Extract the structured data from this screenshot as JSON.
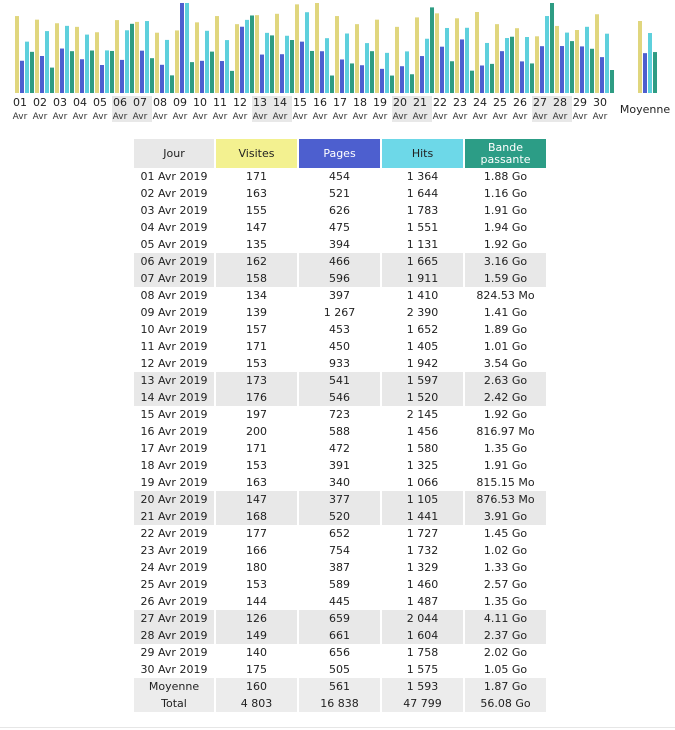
{
  "colors": {
    "visits": "#e0d67e",
    "pages": "#4d5fcf",
    "hits": "#5ed0dc",
    "bandwidth": "#2e9c83",
    "header_day_bg": "#e8e8e8",
    "header_visits_bg": "#f3f190",
    "header_pages_bg": "#4d5fcf",
    "header_hits_bg": "#6dd8e8",
    "header_bw_bg": "#2c9d86",
    "weekend_bg": "#e8e8e8"
  },
  "chart_data": {
    "type": "bar",
    "categories": [
      "01",
      "02",
      "03",
      "04",
      "05",
      "06",
      "07",
      "08",
      "09",
      "10",
      "11",
      "12",
      "13",
      "14",
      "15",
      "16",
      "17",
      "18",
      "19",
      "20",
      "21",
      "22",
      "23",
      "24",
      "25",
      "26",
      "27",
      "28",
      "29",
      "30"
    ],
    "category_sublabel": "Avr",
    "weekend_indices": [
      5,
      6,
      12,
      13,
      19,
      20,
      26,
      27
    ],
    "average_label": "Moyenne",
    "series": [
      {
        "key": "visits",
        "values": [
          171,
          163,
          155,
          147,
          135,
          162,
          158,
          134,
          139,
          157,
          171,
          153,
          173,
          176,
          197,
          200,
          171,
          153,
          163,
          147,
          168,
          177,
          166,
          180,
          153,
          144,
          126,
          149,
          140,
          175
        ],
        "average": 160
      },
      {
        "key": "pages",
        "values": [
          454,
          521,
          626,
          475,
          394,
          466,
          596,
          397,
          1267,
          453,
          450,
          933,
          541,
          546,
          723,
          588,
          472,
          391,
          340,
          377,
          520,
          652,
          754,
          387,
          589,
          445,
          659,
          661,
          656,
          505
        ],
        "average": 561
      },
      {
        "key": "hits",
        "values": [
          1364,
          1644,
          1783,
          1551,
          1131,
          1665,
          1911,
          1410,
          2390,
          1652,
          1405,
          1942,
          1597,
          1520,
          2145,
          1456,
          1580,
          1325,
          1066,
          1105,
          1441,
          1727,
          1732,
          1329,
          1460,
          1487,
          2044,
          1604,
          1758,
          1575
        ],
        "average": 1593
      },
      {
        "key": "bandwidth",
        "values": [
          1.88,
          1.16,
          1.91,
          1.94,
          1.92,
          3.16,
          1.59,
          0.805,
          1.41,
          1.89,
          1.01,
          3.54,
          2.63,
          2.42,
          1.92,
          0.798,
          1.35,
          1.91,
          0.796,
          0.856,
          3.91,
          1.45,
          1.02,
          1.33,
          2.57,
          1.35,
          4.11,
          2.37,
          2.02,
          1.05
        ],
        "average": 1.87
      }
    ],
    "ylim": [
      0,
      null
    ],
    "grid": false,
    "legend": "none"
  },
  "table": {
    "headers": {
      "day": "Jour",
      "visits": "Visites",
      "pages": "Pages",
      "hits": "Hits",
      "bandwidth": "Bande passante"
    },
    "rows": [
      {
        "day": "01 Avr 2019",
        "visits": "171",
        "pages": "454",
        "hits": "1 364",
        "bandwidth": "1.88 Go",
        "weekend": false
      },
      {
        "day": "02 Avr 2019",
        "visits": "163",
        "pages": "521",
        "hits": "1 644",
        "bandwidth": "1.16 Go",
        "weekend": false
      },
      {
        "day": "03 Avr 2019",
        "visits": "155",
        "pages": "626",
        "hits": "1 783",
        "bandwidth": "1.91 Go",
        "weekend": false
      },
      {
        "day": "04 Avr 2019",
        "visits": "147",
        "pages": "475",
        "hits": "1 551",
        "bandwidth": "1.94 Go",
        "weekend": false
      },
      {
        "day": "05 Avr 2019",
        "visits": "135",
        "pages": "394",
        "hits": "1 131",
        "bandwidth": "1.92 Go",
        "weekend": false
      },
      {
        "day": "06 Avr 2019",
        "visits": "162",
        "pages": "466",
        "hits": "1 665",
        "bandwidth": "3.16 Go",
        "weekend": true
      },
      {
        "day": "07 Avr 2019",
        "visits": "158",
        "pages": "596",
        "hits": "1 911",
        "bandwidth": "1.59 Go",
        "weekend": true
      },
      {
        "day": "08 Avr 2019",
        "visits": "134",
        "pages": "397",
        "hits": "1 410",
        "bandwidth": "824.53 Mo",
        "weekend": false
      },
      {
        "day": "09 Avr 2019",
        "visits": "139",
        "pages": "1 267",
        "hits": "2 390",
        "bandwidth": "1.41 Go",
        "weekend": false
      },
      {
        "day": "10 Avr 2019",
        "visits": "157",
        "pages": "453",
        "hits": "1 652",
        "bandwidth": "1.89 Go",
        "weekend": false
      },
      {
        "day": "11 Avr 2019",
        "visits": "171",
        "pages": "450",
        "hits": "1 405",
        "bandwidth": "1.01 Go",
        "weekend": false
      },
      {
        "day": "12 Avr 2019",
        "visits": "153",
        "pages": "933",
        "hits": "1 942",
        "bandwidth": "3.54 Go",
        "weekend": false
      },
      {
        "day": "13 Avr 2019",
        "visits": "173",
        "pages": "541",
        "hits": "1 597",
        "bandwidth": "2.63 Go",
        "weekend": true
      },
      {
        "day": "14 Avr 2019",
        "visits": "176",
        "pages": "546",
        "hits": "1 520",
        "bandwidth": "2.42 Go",
        "weekend": true
      },
      {
        "day": "15 Avr 2019",
        "visits": "197",
        "pages": "723",
        "hits": "2 145",
        "bandwidth": "1.92 Go",
        "weekend": false
      },
      {
        "day": "16 Avr 2019",
        "visits": "200",
        "pages": "588",
        "hits": "1 456",
        "bandwidth": "816.97 Mo",
        "weekend": false
      },
      {
        "day": "17 Avr 2019",
        "visits": "171",
        "pages": "472",
        "hits": "1 580",
        "bandwidth": "1.35 Go",
        "weekend": false
      },
      {
        "day": "18 Avr 2019",
        "visits": "153",
        "pages": "391",
        "hits": "1 325",
        "bandwidth": "1.91 Go",
        "weekend": false
      },
      {
        "day": "19 Avr 2019",
        "visits": "163",
        "pages": "340",
        "hits": "1 066",
        "bandwidth": "815.15 Mo",
        "weekend": false
      },
      {
        "day": "20 Avr 2019",
        "visits": "147",
        "pages": "377",
        "hits": "1 105",
        "bandwidth": "876.53 Mo",
        "weekend": true
      },
      {
        "day": "21 Avr 2019",
        "visits": "168",
        "pages": "520",
        "hits": "1 441",
        "bandwidth": "3.91 Go",
        "weekend": true
      },
      {
        "day": "22 Avr 2019",
        "visits": "177",
        "pages": "652",
        "hits": "1 727",
        "bandwidth": "1.45 Go",
        "weekend": false
      },
      {
        "day": "23 Avr 2019",
        "visits": "166",
        "pages": "754",
        "hits": "1 732",
        "bandwidth": "1.02 Go",
        "weekend": false
      },
      {
        "day": "24 Avr 2019",
        "visits": "180",
        "pages": "387",
        "hits": "1 329",
        "bandwidth": "1.33 Go",
        "weekend": false
      },
      {
        "day": "25 Avr 2019",
        "visits": "153",
        "pages": "589",
        "hits": "1 460",
        "bandwidth": "2.57 Go",
        "weekend": false
      },
      {
        "day": "26 Avr 2019",
        "visits": "144",
        "pages": "445",
        "hits": "1 487",
        "bandwidth": "1.35 Go",
        "weekend": false
      },
      {
        "day": "27 Avr 2019",
        "visits": "126",
        "pages": "659",
        "hits": "2 044",
        "bandwidth": "4.11 Go",
        "weekend": true
      },
      {
        "day": "28 Avr 2019",
        "visits": "149",
        "pages": "661",
        "hits": "1 604",
        "bandwidth": "2.37 Go",
        "weekend": true
      },
      {
        "day": "29 Avr 2019",
        "visits": "140",
        "pages": "656",
        "hits": "1 758",
        "bandwidth": "2.02 Go",
        "weekend": false
      },
      {
        "day": "30 Avr 2019",
        "visits": "175",
        "pages": "505",
        "hits": "1 575",
        "bandwidth": "1.05 Go",
        "weekend": false
      }
    ],
    "average": {
      "day": "Moyenne",
      "visits": "160",
      "pages": "561",
      "hits": "1 593",
      "bandwidth": "1.87 Go"
    },
    "total": {
      "day": "Total",
      "visits": "4 803",
      "pages": "16 838",
      "hits": "47 799",
      "bandwidth": "56.08 Go"
    }
  }
}
